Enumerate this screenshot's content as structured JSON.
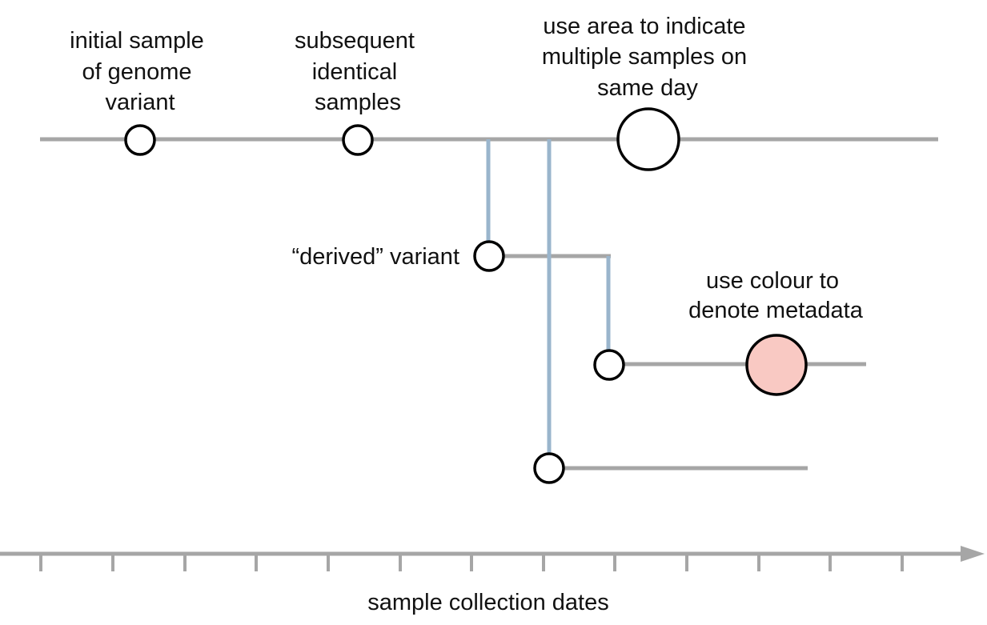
{
  "annotations": {
    "initial_sample": [
      "initial sample",
      "of genome",
      "variant"
    ],
    "identical_samples": [
      "subsequent",
      "identical",
      "samples"
    ],
    "area_note": [
      "use area to indicate",
      "multiple samples on",
      "same day"
    ],
    "derived_variant": "“derived” variant",
    "colour_note": [
      "use colour to",
      "denote metadata"
    ]
  },
  "axis": {
    "label": "sample collection dates"
  },
  "colors": {
    "lineage_line": "#a6a6a6",
    "branch_connector": "#9ab5cc",
    "node_stroke": "#000000",
    "node_fill": "#ffffff",
    "metadata_fill": "#f9c9c3",
    "axis": "#a6a6a6"
  },
  "icons": {
    "axis_end": "arrow-head-icon"
  }
}
